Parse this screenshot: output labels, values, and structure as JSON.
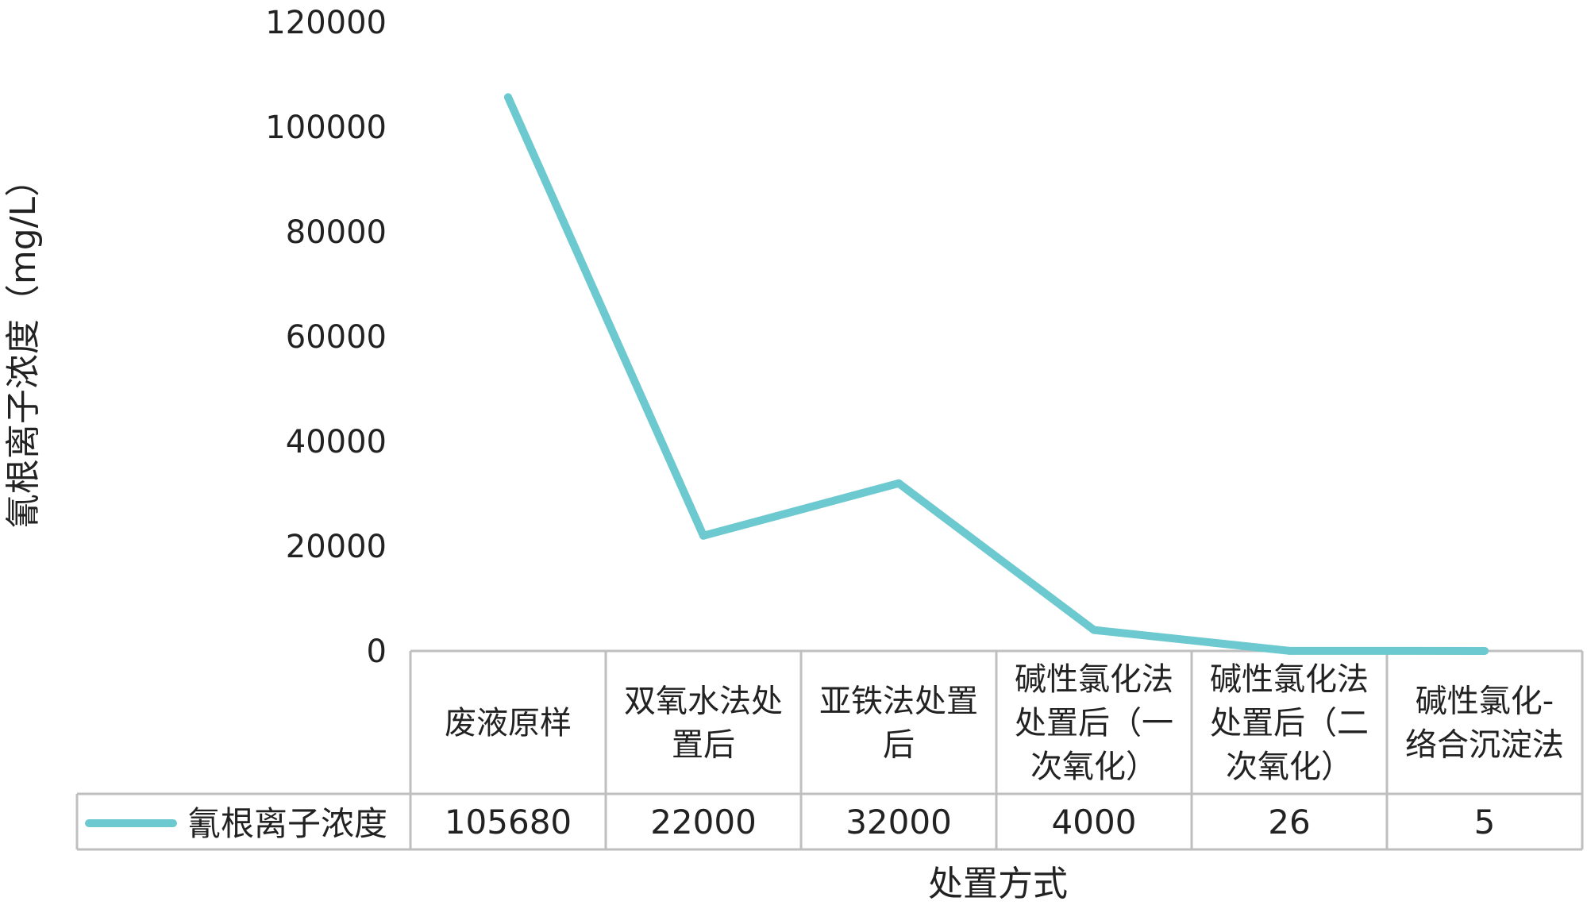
{
  "chart_data": {
    "type": "line",
    "title": "",
    "xlabel": "处置方式",
    "ylabel": "氰根离子浓度（mg/L）",
    "ylim": [
      0,
      120000
    ],
    "yticks": [
      "0",
      "20000",
      "40000",
      "60000",
      "80000",
      "100000",
      "120000"
    ],
    "categories": [
      [
        "废液原样"
      ],
      [
        "双氧水法处",
        "置后"
      ],
      [
        "亚铁法处置",
        "后"
      ],
      [
        "碱性氯化法",
        "处置后（一",
        "次氧化）"
      ],
      [
        "碱性氯化法",
        "处置后（二",
        "次氧化）"
      ],
      [
        "碱性氯化-",
        "络合沉淀法"
      ]
    ],
    "series": [
      {
        "name": "氰根离子浓度",
        "values": [
          105680,
          22000,
          32000,
          4000,
          26,
          5
        ],
        "labels": [
          "105680",
          "22000",
          "32000",
          "4000",
          "26",
          "5"
        ],
        "color": "#6cc9cf"
      }
    ],
    "grid": false,
    "legend": "data-table"
  }
}
